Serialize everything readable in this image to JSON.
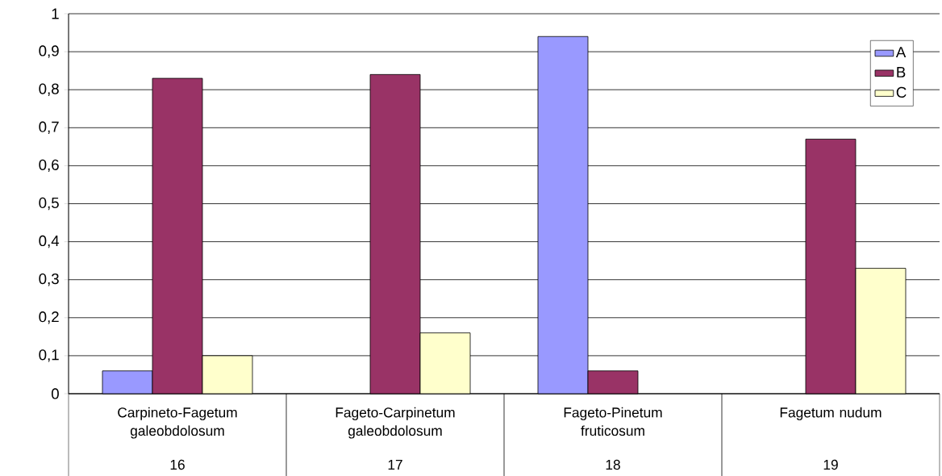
{
  "chart_data": {
    "type": "bar",
    "categories": [
      "Carpineto-Fagetum galeobdolosum",
      "Fageto-Carpinetum galeobdolosum",
      "Fageto-Pinetum fruticosum",
      "Fagetum nudum"
    ],
    "series": [
      {
        "name": "A",
        "color": "#9999ff",
        "values": [
          0.06,
          null,
          0.94,
          null
        ]
      },
      {
        "name": "B",
        "color": "#993366",
        "values": [
          0.83,
          0.84,
          0.06,
          0.67
        ]
      },
      {
        "name": "C",
        "color": "#ffffcc",
        "values": [
          0.1,
          0.16,
          null,
          0.33
        ]
      }
    ],
    "annotations": [
      "16",
      "17",
      "18",
      "19"
    ],
    "ylim": [
      0,
      1
    ],
    "yticks": [
      0,
      {
        "value": 0.1,
        "label": "0,1"
      },
      {
        "value": 0.2,
        "label": "0,2"
      },
      {
        "value": 0.3,
        "label": "0,3"
      },
      {
        "value": 0.4,
        "label": "0,4"
      },
      {
        "value": 0.5,
        "label": "0,5"
      },
      {
        "value": 0.6,
        "label": "0,6"
      },
      {
        "value": 0.7,
        "label": "0,7"
      },
      {
        "value": 0.8,
        "label": "0,8"
      },
      {
        "value": 0.9,
        "label": "0,9"
      },
      1
    ],
    "grid": "y",
    "legend": "top right"
  }
}
